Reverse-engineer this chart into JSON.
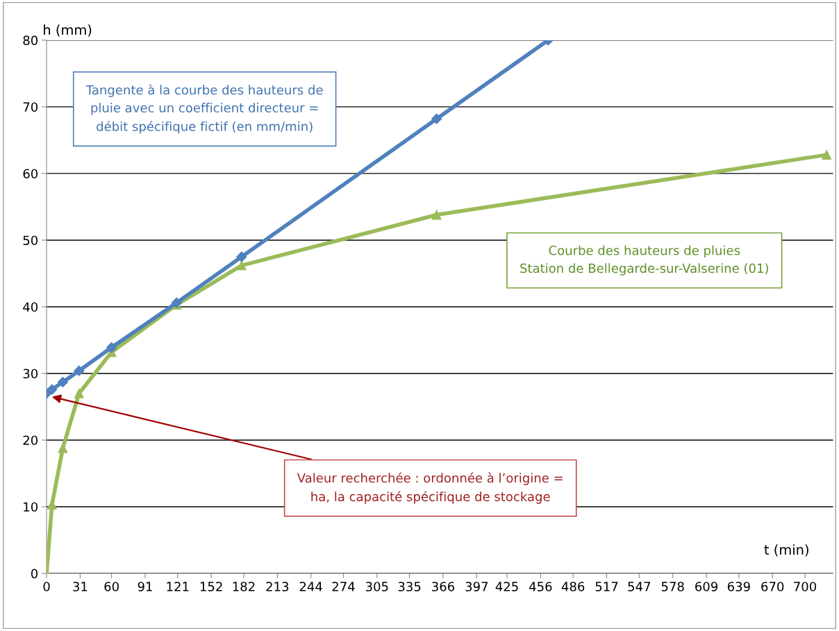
{
  "chart_data": {
    "type": "line",
    "x": [
      0,
      5,
      15,
      30,
      60,
      120,
      180,
      360,
      720
    ],
    "series": [
      {
        "color": "#4f81bd",
        "marker": "diamond",
        "x": [
          0,
          5,
          15,
          30,
          60,
          120,
          180,
          360,
          463
        ],
        "values": [
          27,
          27.6,
          28.7,
          30.4,
          33.9,
          40.6,
          47.5,
          68.2,
          80
        ]
      },
      {
        "color": "#9bbb59",
        "marker": "triangle",
        "values": [
          0,
          10.3,
          18.8,
          27,
          33.2,
          40.3,
          46.2,
          53.8,
          62.8
        ]
      }
    ],
    "xlabel": "t (min)",
    "ylabel": "h (mm)",
    "xlim": [
      0,
      726
    ],
    "xticks": [
      0,
      31,
      60,
      91,
      121,
      152,
      182,
      213,
      244,
      274,
      305,
      335,
      366,
      397,
      425,
      456,
      486,
      517,
      547,
      578,
      609,
      639,
      670,
      700
    ],
    "ylim": [
      0,
      80
    ],
    "yticks": [
      0,
      10,
      20,
      30,
      40,
      50,
      60,
      70,
      80
    ],
    "grid": "y",
    "legend": false,
    "annotations": [
      "Tangente à la courbe des hauteurs de\npluie avec un coefficient directeur =\ndébit spécifique fictif (en mm/min)",
      "Courbe des hauteurs de pluies\nStation de Bellegarde-sur-Valserine (01)",
      {
        "text": "Valeur recherchée : ordonnée à l’origine =\nha, la capacité spécifique de stockage",
        "x": 5,
        "y": 26.5
      }
    ]
  }
}
